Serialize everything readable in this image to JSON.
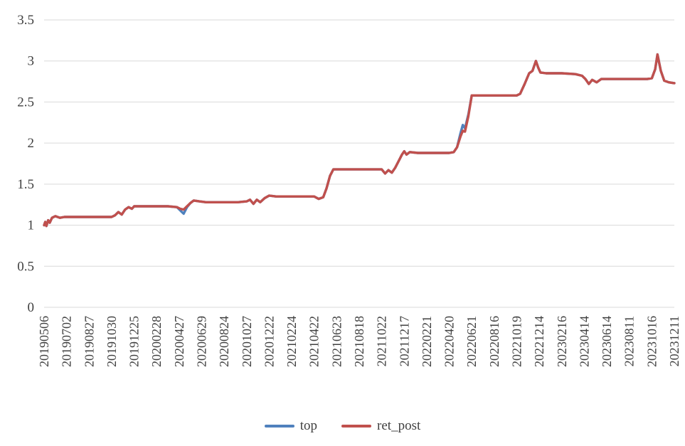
{
  "chart_data": {
    "type": "line",
    "title": "",
    "xlabel": "",
    "ylabel": "",
    "grid": "horizontal",
    "legend_position": "bottom",
    "ylim": [
      0,
      3.5
    ],
    "xlim": [
      0,
      28
    ],
    "y_ticks": [
      0,
      0.5,
      1,
      1.5,
      2,
      2.5,
      3,
      3.5
    ],
    "y_tick_labels": [
      "0",
      "0.5",
      "1",
      "1.5",
      "2",
      "2.5",
      "3",
      "3.5"
    ],
    "x_tick_labels": [
      "20190506",
      "20190702",
      "20190827",
      "20191030",
      "20191225",
      "20200228",
      "20200427",
      "20200629",
      "20200824",
      "20201027",
      "20201222",
      "20210224",
      "20210422",
      "20210623",
      "20210818",
      "20211022",
      "20211217",
      "20220221",
      "20220420",
      "20220621",
      "20220816",
      "20221019",
      "20221214",
      "20230216",
      "20230414",
      "20230614",
      "20230811",
      "20231016",
      "20231211"
    ],
    "gridline_color": "#d9d9d9",
    "series": [
      {
        "name": "top",
        "color": "#4f81bd",
        "points": [
          [
            0,
            1.0
          ],
          [
            0.05,
            1.04
          ],
          [
            0.1,
            0.99
          ],
          [
            0.18,
            1.06
          ],
          [
            0.25,
            1.03
          ],
          [
            0.35,
            1.09
          ],
          [
            0.5,
            1.11
          ],
          [
            0.7,
            1.09
          ],
          [
            0.9,
            1.1
          ],
          [
            1.5,
            1.1
          ],
          [
            2.0,
            1.1
          ],
          [
            2.5,
            1.1
          ],
          [
            3.0,
            1.1
          ],
          [
            3.15,
            1.12
          ],
          [
            3.3,
            1.16
          ],
          [
            3.45,
            1.13
          ],
          [
            3.6,
            1.19
          ],
          [
            3.75,
            1.22
          ],
          [
            3.9,
            1.2
          ],
          [
            4.0,
            1.23
          ],
          [
            4.5,
            1.23
          ],
          [
            5.0,
            1.23
          ],
          [
            5.5,
            1.23
          ],
          [
            5.9,
            1.22
          ],
          [
            6.05,
            1.18
          ],
          [
            6.2,
            1.14
          ],
          [
            6.35,
            1.22
          ],
          [
            6.5,
            1.27
          ],
          [
            6.65,
            1.3
          ],
          [
            6.9,
            1.29
          ],
          [
            7.2,
            1.28
          ],
          [
            8.0,
            1.28
          ],
          [
            8.6,
            1.28
          ],
          [
            9.0,
            1.29
          ],
          [
            9.15,
            1.31
          ],
          [
            9.3,
            1.26
          ],
          [
            9.45,
            1.31
          ],
          [
            9.6,
            1.28
          ],
          [
            9.8,
            1.33
          ],
          [
            10.0,
            1.36
          ],
          [
            10.3,
            1.35
          ],
          [
            11.0,
            1.35
          ],
          [
            11.6,
            1.35
          ],
          [
            12.0,
            1.35
          ],
          [
            12.2,
            1.32
          ],
          [
            12.4,
            1.34
          ],
          [
            12.55,
            1.45
          ],
          [
            12.7,
            1.6
          ],
          [
            12.85,
            1.68
          ],
          [
            13.2,
            1.68
          ],
          [
            14.0,
            1.68
          ],
          [
            14.6,
            1.68
          ],
          [
            15.0,
            1.68
          ],
          [
            15.15,
            1.63
          ],
          [
            15.3,
            1.67
          ],
          [
            15.45,
            1.64
          ],
          [
            15.6,
            1.7
          ],
          [
            15.75,
            1.78
          ],
          [
            15.9,
            1.86
          ],
          [
            16.0,
            1.9
          ],
          [
            16.1,
            1.86
          ],
          [
            16.25,
            1.89
          ],
          [
            16.6,
            1.88
          ],
          [
            17.0,
            1.88
          ],
          [
            17.6,
            1.88
          ],
          [
            18.0,
            1.88
          ],
          [
            18.2,
            1.89
          ],
          [
            18.35,
            1.95
          ],
          [
            18.5,
            2.12
          ],
          [
            18.6,
            2.22
          ],
          [
            18.7,
            2.18
          ],
          [
            18.85,
            2.35
          ],
          [
            19.0,
            2.58
          ],
          [
            19.4,
            2.58
          ],
          [
            20.0,
            2.58
          ],
          [
            20.6,
            2.58
          ],
          [
            21.0,
            2.58
          ],
          [
            21.15,
            2.6
          ],
          [
            21.35,
            2.72
          ],
          [
            21.55,
            2.85
          ],
          [
            21.7,
            2.88
          ],
          [
            21.85,
            3.0
          ],
          [
            21.95,
            2.92
          ],
          [
            22.05,
            2.86
          ],
          [
            22.3,
            2.85
          ],
          [
            23.0,
            2.85
          ],
          [
            23.6,
            2.84
          ],
          [
            23.9,
            2.82
          ],
          [
            24.05,
            2.78
          ],
          [
            24.2,
            2.72
          ],
          [
            24.35,
            2.77
          ],
          [
            24.55,
            2.74
          ],
          [
            24.75,
            2.78
          ],
          [
            25.0,
            2.78
          ],
          [
            26.0,
            2.78
          ],
          [
            26.8,
            2.78
          ],
          [
            27.0,
            2.79
          ],
          [
            27.15,
            2.9
          ],
          [
            27.25,
            3.08
          ],
          [
            27.4,
            2.88
          ],
          [
            27.55,
            2.76
          ],
          [
            27.75,
            2.74
          ],
          [
            28.0,
            2.73
          ]
        ]
      },
      {
        "name": "ret_post",
        "color": "#c0504d",
        "points": [
          [
            0,
            1.0
          ],
          [
            0.05,
            1.04
          ],
          [
            0.1,
            0.99
          ],
          [
            0.18,
            1.06
          ],
          [
            0.25,
            1.03
          ],
          [
            0.35,
            1.09
          ],
          [
            0.5,
            1.11
          ],
          [
            0.7,
            1.09
          ],
          [
            0.9,
            1.1
          ],
          [
            1.5,
            1.1
          ],
          [
            2.0,
            1.1
          ],
          [
            2.5,
            1.1
          ],
          [
            3.0,
            1.1
          ],
          [
            3.15,
            1.12
          ],
          [
            3.3,
            1.16
          ],
          [
            3.45,
            1.13
          ],
          [
            3.6,
            1.19
          ],
          [
            3.75,
            1.22
          ],
          [
            3.9,
            1.2
          ],
          [
            4.0,
            1.23
          ],
          [
            4.5,
            1.23
          ],
          [
            5.0,
            1.23
          ],
          [
            5.5,
            1.23
          ],
          [
            5.9,
            1.22
          ],
          [
            6.05,
            1.2
          ],
          [
            6.2,
            1.19
          ],
          [
            6.35,
            1.23
          ],
          [
            6.5,
            1.27
          ],
          [
            6.65,
            1.3
          ],
          [
            6.9,
            1.29
          ],
          [
            7.2,
            1.28
          ],
          [
            8.0,
            1.28
          ],
          [
            8.6,
            1.28
          ],
          [
            9.0,
            1.29
          ],
          [
            9.15,
            1.31
          ],
          [
            9.3,
            1.26
          ],
          [
            9.45,
            1.31
          ],
          [
            9.6,
            1.28
          ],
          [
            9.8,
            1.33
          ],
          [
            10.0,
            1.36
          ],
          [
            10.3,
            1.35
          ],
          [
            11.0,
            1.35
          ],
          [
            11.6,
            1.35
          ],
          [
            12.0,
            1.35
          ],
          [
            12.2,
            1.32
          ],
          [
            12.4,
            1.34
          ],
          [
            12.55,
            1.45
          ],
          [
            12.7,
            1.6
          ],
          [
            12.85,
            1.68
          ],
          [
            13.2,
            1.68
          ],
          [
            14.0,
            1.68
          ],
          [
            14.6,
            1.68
          ],
          [
            15.0,
            1.68
          ],
          [
            15.15,
            1.63
          ],
          [
            15.3,
            1.67
          ],
          [
            15.45,
            1.64
          ],
          [
            15.6,
            1.7
          ],
          [
            15.75,
            1.78
          ],
          [
            15.9,
            1.86
          ],
          [
            16.0,
            1.9
          ],
          [
            16.1,
            1.86
          ],
          [
            16.25,
            1.89
          ],
          [
            16.6,
            1.88
          ],
          [
            17.0,
            1.88
          ],
          [
            17.6,
            1.88
          ],
          [
            18.0,
            1.88
          ],
          [
            18.2,
            1.89
          ],
          [
            18.35,
            1.95
          ],
          [
            18.5,
            2.08
          ],
          [
            18.6,
            2.15
          ],
          [
            18.7,
            2.14
          ],
          [
            18.85,
            2.33
          ],
          [
            19.0,
            2.58
          ],
          [
            19.4,
            2.58
          ],
          [
            20.0,
            2.58
          ],
          [
            20.6,
            2.58
          ],
          [
            21.0,
            2.58
          ],
          [
            21.15,
            2.6
          ],
          [
            21.35,
            2.72
          ],
          [
            21.55,
            2.85
          ],
          [
            21.7,
            2.88
          ],
          [
            21.85,
            3.0
          ],
          [
            21.95,
            2.92
          ],
          [
            22.05,
            2.86
          ],
          [
            22.3,
            2.85
          ],
          [
            23.0,
            2.85
          ],
          [
            23.6,
            2.84
          ],
          [
            23.9,
            2.82
          ],
          [
            24.05,
            2.78
          ],
          [
            24.2,
            2.72
          ],
          [
            24.35,
            2.77
          ],
          [
            24.55,
            2.74
          ],
          [
            24.75,
            2.78
          ],
          [
            25.0,
            2.78
          ],
          [
            26.0,
            2.78
          ],
          [
            26.8,
            2.78
          ],
          [
            27.0,
            2.79
          ],
          [
            27.15,
            2.9
          ],
          [
            27.25,
            3.08
          ],
          [
            27.4,
            2.88
          ],
          [
            27.55,
            2.76
          ],
          [
            27.75,
            2.74
          ],
          [
            28.0,
            2.73
          ]
        ]
      }
    ]
  },
  "legend": {
    "items": [
      {
        "label": "top",
        "color": "#4f81bd"
      },
      {
        "label": "ret_post",
        "color": "#c0504d"
      }
    ]
  }
}
